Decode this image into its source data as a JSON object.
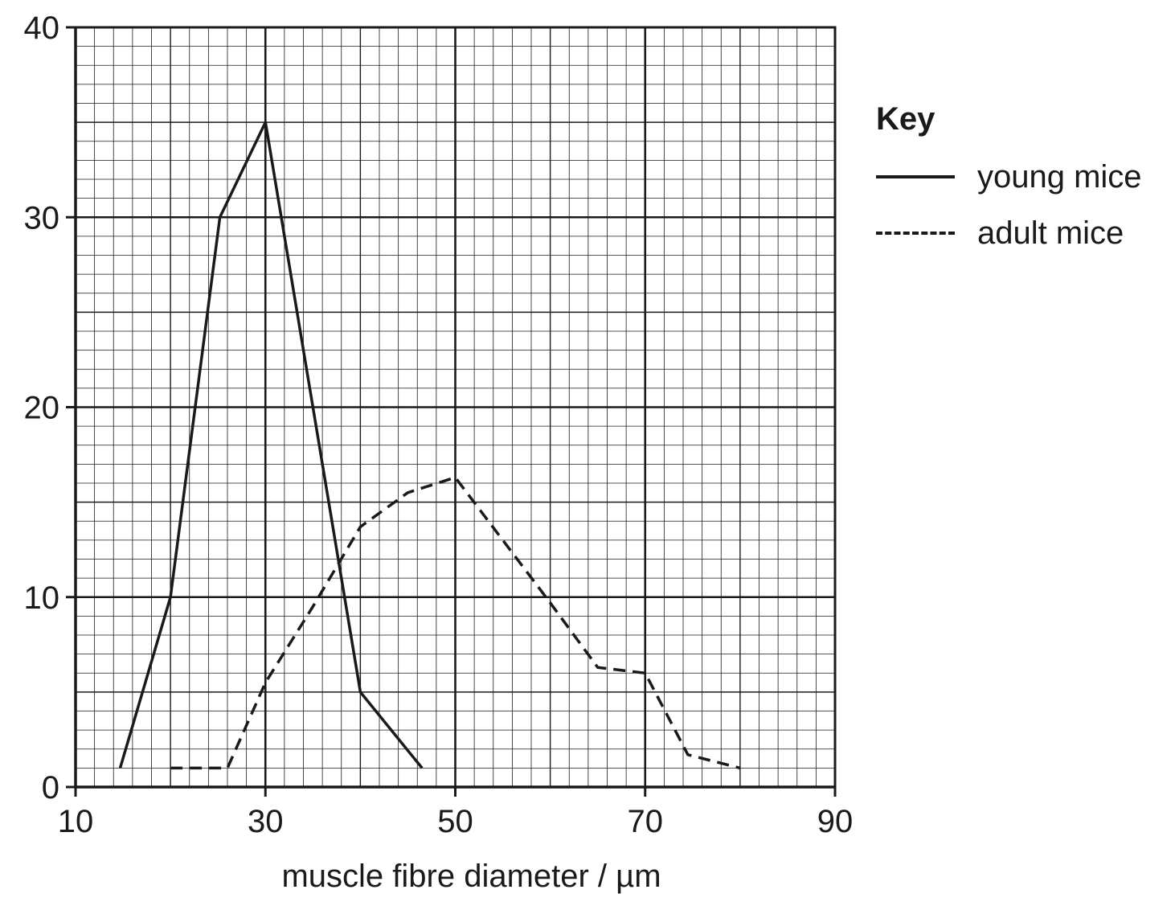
{
  "chart_data": {
    "type": "line",
    "title": "",
    "xlabel": "muscle fibre diameter / µm",
    "ylabel": "",
    "xlim": [
      10,
      90
    ],
    "ylim": [
      0,
      40
    ],
    "xticks": [
      10,
      30,
      50,
      70,
      90
    ],
    "yticks": [
      0,
      10,
      20,
      30,
      40
    ],
    "grid": true,
    "legend_title": "Key",
    "legend_position": "right",
    "series": [
      {
        "name": "young mice",
        "style": "solid",
        "color": "#1a1a1a",
        "points": [
          [
            14.7,
            1
          ],
          [
            20,
            10
          ],
          [
            25.2,
            30
          ],
          [
            30,
            35
          ],
          [
            40,
            5
          ],
          [
            46.5,
            1
          ]
        ]
      },
      {
        "name": "adult mice",
        "style": "dashed",
        "color": "#1a1a1a",
        "points": [
          [
            20,
            1
          ],
          [
            26,
            1
          ],
          [
            30,
            5.5
          ],
          [
            35,
            9.5
          ],
          [
            40,
            13.7
          ],
          [
            45,
            15.5
          ],
          [
            50,
            16.3
          ],
          [
            55,
            13
          ],
          [
            60,
            9.7
          ],
          [
            65,
            6.3
          ],
          [
            70,
            6
          ],
          [
            74.5,
            1.7
          ],
          [
            80,
            1
          ]
        ]
      }
    ]
  }
}
